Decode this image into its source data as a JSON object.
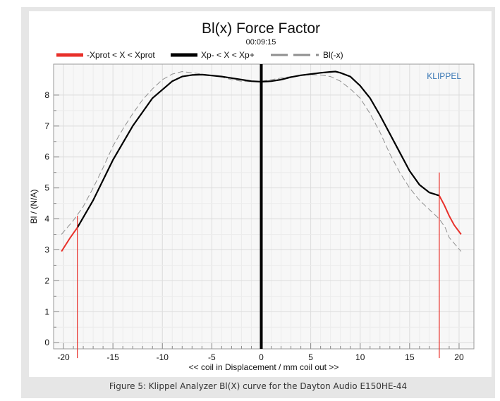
{
  "caption": "Figure 5: Klippel Analyzer Bl(X) curve for the Dayton Audio E150HE-44",
  "chart_data": {
    "type": "line",
    "title": "Bl(x) Force Factor",
    "subtitle": "00:09:15",
    "watermark": "KLIPPEL",
    "xlabel": "<< coil in Displacement / mm coil out >>",
    "ylabel": "Bl / (N/A)",
    "xlim": [
      -21,
      21.5
    ],
    "ylim": [
      -0.2,
      9.0
    ],
    "xticks": [
      -20,
      -15,
      -10,
      -5,
      0,
      5,
      10,
      15,
      20
    ],
    "xtick_labels": [
      "-20",
      "-15",
      "-10",
      "-5",
      "0",
      "5",
      "10",
      "15",
      "20"
    ],
    "yticks": [
      0,
      1,
      2,
      3,
      4,
      5,
      6,
      7,
      8
    ],
    "ytick_labels": [
      "0",
      "1",
      "2",
      "3",
      "4",
      "5",
      "6",
      "7",
      "8"
    ],
    "grid": true,
    "legend_position": "top",
    "colors": {
      "xprot": "#e8302a",
      "xp": "#000000",
      "mirror": "#909090",
      "watermark": "#3a78b5",
      "marker": "#e8302a"
    },
    "series": [
      {
        "name": "-Xprot < X < Xprot",
        "style": "red",
        "x": [
          -20.2,
          -19.8,
          -19.3,
          -18.6
        ],
        "y": [
          2.95,
          3.15,
          3.4,
          3.72
        ]
      },
      {
        "name": "Xp- < X < Xp+",
        "style": "black",
        "x": [
          -18.6,
          -17,
          -15,
          -13,
          -11,
          -9,
          -8,
          -7,
          -6,
          -5,
          -4,
          -3,
          -2,
          -1,
          0,
          1,
          2,
          3,
          4,
          5,
          6,
          7,
          7.5,
          8,
          9,
          10,
          11,
          12,
          13,
          14,
          15,
          16,
          17,
          18
        ],
        "y": [
          3.72,
          4.6,
          5.9,
          7.0,
          7.9,
          8.45,
          8.6,
          8.65,
          8.66,
          8.63,
          8.6,
          8.55,
          8.5,
          8.45,
          8.43,
          8.45,
          8.5,
          8.58,
          8.64,
          8.68,
          8.72,
          8.75,
          8.76,
          8.72,
          8.6,
          8.3,
          7.9,
          7.35,
          6.75,
          6.15,
          5.55,
          5.1,
          4.85,
          4.75
        ]
      },
      {
        "name": "",
        "style": "red",
        "x": [
          18,
          18.5,
          19,
          19.5,
          20.2
        ],
        "y": [
          4.75,
          4.45,
          4.1,
          3.8,
          3.5
        ]
      },
      {
        "name": "Bl(-x)",
        "style": "mirror",
        "x": [
          -20.2,
          -19,
          -18,
          -17,
          -16,
          -15,
          -14,
          -13,
          -12,
          -11,
          -10,
          -9,
          -8.5,
          -8,
          -7.5,
          -7,
          -6,
          -5,
          -4,
          -3,
          -2,
          -1,
          0,
          1,
          2,
          3,
          4,
          5,
          6,
          7,
          8,
          9,
          10,
          11,
          12,
          13,
          14,
          15,
          16,
          17,
          18,
          18.6,
          19,
          20.2
        ],
        "y": [
          3.5,
          3.95,
          4.4,
          5.0,
          5.65,
          6.35,
          6.9,
          7.4,
          7.85,
          8.2,
          8.5,
          8.68,
          8.72,
          8.76,
          8.74,
          8.72,
          8.68,
          8.64,
          8.58,
          8.5,
          8.45,
          8.43,
          8.45,
          8.5,
          8.55,
          8.6,
          8.63,
          8.66,
          8.65,
          8.6,
          8.45,
          8.2,
          7.9,
          7.4,
          6.8,
          6.1,
          5.5,
          5.0,
          4.6,
          4.3,
          4.0,
          3.72,
          3.4,
          2.95
        ]
      }
    ],
    "markers": [
      {
        "x": -18.6,
        "y_from": -0.5,
        "y_to": 4.1
      },
      {
        "x": 18,
        "y_from": -0.5,
        "y_to": 5.5
      }
    ],
    "center_line": {
      "x": 0
    }
  }
}
